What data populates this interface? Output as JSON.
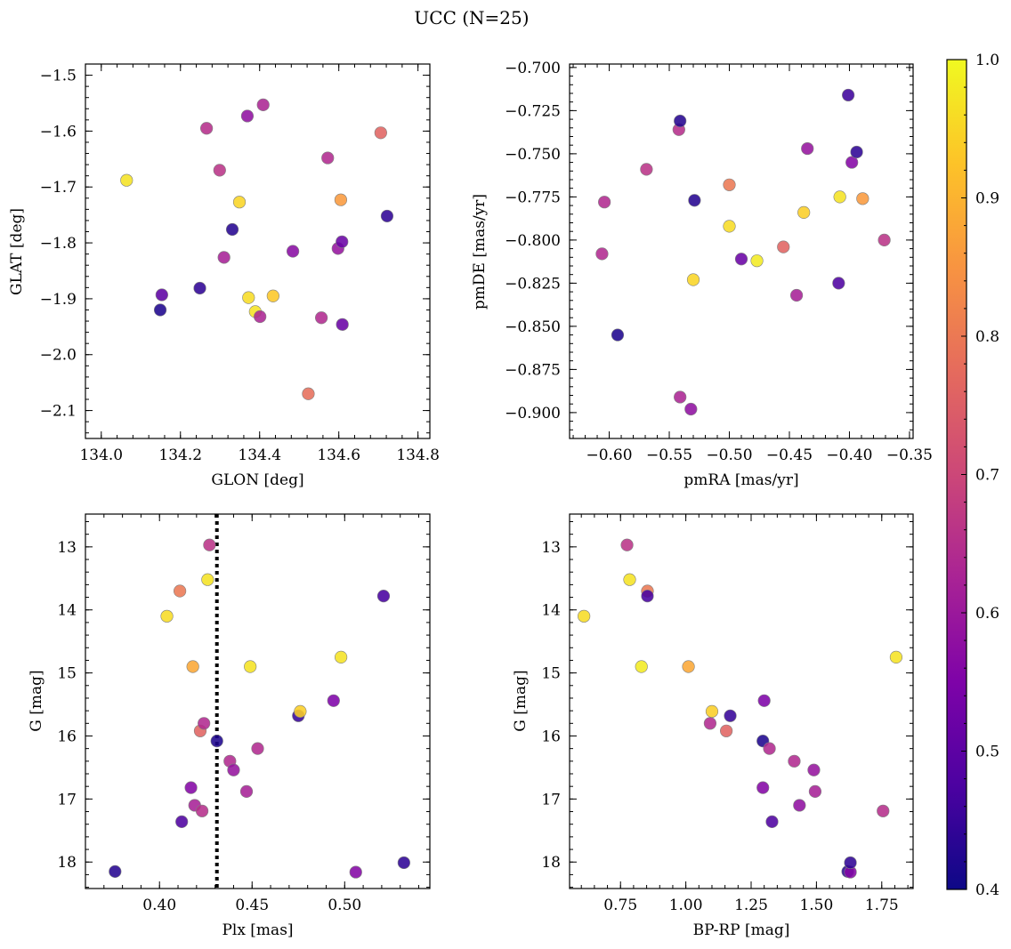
{
  "figure": {
    "title": "UCC (N=25)"
  },
  "colorbar": {
    "colormap": "plasma",
    "range": [
      0.4,
      1.0
    ],
    "ticks": [
      0.4,
      0.5,
      0.6,
      0.7,
      0.8,
      0.9,
      1.0
    ],
    "tick_labels": [
      "0.4",
      "0.5",
      "0.6",
      "0.7",
      "0.8",
      "0.9",
      "1.0"
    ]
  },
  "cluster_marker": {
    "plx": 0.431
  },
  "chart_data": [
    {
      "type": "scatter",
      "panel": "top-left",
      "xlabel": "GLON [deg]",
      "ylabel": "GLAT [deg]",
      "xlim": [
        133.96,
        134.83
      ],
      "ylim": [
        -2.15,
        -1.48
      ],
      "xticks": [
        134.0,
        134.2,
        134.4,
        134.6,
        134.8
      ],
      "xtick_labels": [
        "134.0",
        "134.2",
        "134.4",
        "134.6",
        "134.8"
      ],
      "yticks": [
        -1.5,
        -1.6,
        -1.7,
        -1.8,
        -1.9,
        -2.0,
        -2.1
      ],
      "ytick_labels": [
        "−1.5",
        "−1.6",
        "−1.7",
        "−1.8",
        "−1.9",
        "−2.0",
        "−2.1"
      ],
      "points": [
        {
          "x": 134.064,
          "y": -1.688,
          "c": 0.97
        },
        {
          "x": 134.149,
          "y": -1.92,
          "c": 0.42
        },
        {
          "x": 134.153,
          "y": -1.893,
          "c": 0.5
        },
        {
          "x": 134.249,
          "y": -1.881,
          "c": 0.44
        },
        {
          "x": 134.266,
          "y": -1.595,
          "c": 0.65
        },
        {
          "x": 134.299,
          "y": -1.67,
          "c": 0.66
        },
        {
          "x": 134.31,
          "y": -1.826,
          "c": 0.62
        },
        {
          "x": 134.331,
          "y": -1.776,
          "c": 0.43
        },
        {
          "x": 134.349,
          "y": -1.727,
          "c": 0.95
        },
        {
          "x": 134.369,
          "y": -1.573,
          "c": 0.58
        },
        {
          "x": 134.372,
          "y": -1.898,
          "c": 0.96
        },
        {
          "x": 134.389,
          "y": -1.923,
          "c": 0.97
        },
        {
          "x": 134.401,
          "y": -1.932,
          "c": 0.63
        },
        {
          "x": 134.409,
          "y": -1.553,
          "c": 0.63
        },
        {
          "x": 134.434,
          "y": -1.895,
          "c": 0.93
        },
        {
          "x": 134.484,
          "y": -1.815,
          "c": 0.57
        },
        {
          "x": 134.523,
          "y": -2.07,
          "c": 0.78
        },
        {
          "x": 134.556,
          "y": -1.934,
          "c": 0.64
        },
        {
          "x": 134.572,
          "y": -1.648,
          "c": 0.64
        },
        {
          "x": 134.598,
          "y": -1.81,
          "c": 0.59
        },
        {
          "x": 134.605,
          "y": -1.723,
          "c": 0.86
        },
        {
          "x": 134.608,
          "y": -1.798,
          "c": 0.52
        },
        {
          "x": 134.609,
          "y": -1.946,
          "c": 0.52
        },
        {
          "x": 134.706,
          "y": -1.603,
          "c": 0.76
        },
        {
          "x": 134.722,
          "y": -1.752,
          "c": 0.44
        }
      ]
    },
    {
      "type": "scatter",
      "panel": "top-right",
      "xlabel": "pmRA [mas/yr]",
      "ylabel": "pmDE [mas/yr]",
      "xlim": [
        -0.633,
        -0.347
      ],
      "ylim": [
        -0.915,
        -0.698
      ],
      "xticks": [
        -0.6,
        -0.55,
        -0.5,
        -0.45,
        -0.4,
        -0.35
      ],
      "xtick_labels": [
        "−0.60",
        "−0.55",
        "−0.50",
        "−0.45",
        "−0.40",
        "−0.35"
      ],
      "yticks": [
        -0.7,
        -0.725,
        -0.75,
        -0.775,
        -0.8,
        -0.825,
        -0.85,
        -0.875,
        -0.9
      ],
      "ytick_labels": [
        "−0.700",
        "−0.725",
        "−0.750",
        "−0.775",
        "−0.800",
        "−0.825",
        "−0.850",
        "−0.875",
        "−0.900"
      ],
      "points": [
        {
          "x": -0.606,
          "y": -0.808,
          "c": 0.64
        },
        {
          "x": -0.604,
          "y": -0.778,
          "c": 0.64
        },
        {
          "x": -0.593,
          "y": -0.855,
          "c": 0.42
        },
        {
          "x": -0.569,
          "y": -0.759,
          "c": 0.66
        },
        {
          "x": -0.542,
          "y": -0.736,
          "c": 0.65
        },
        {
          "x": -0.541,
          "y": -0.731,
          "c": 0.43
        },
        {
          "x": -0.541,
          "y": -0.891,
          "c": 0.63
        },
        {
          "x": -0.532,
          "y": -0.898,
          "c": 0.58
        },
        {
          "x": -0.53,
          "y": -0.823,
          "c": 0.95
        },
        {
          "x": -0.529,
          "y": -0.777,
          "c": 0.43
        },
        {
          "x": -0.5,
          "y": -0.792,
          "c": 0.96
        },
        {
          "x": -0.5,
          "y": -0.768,
          "c": 0.8
        },
        {
          "x": -0.49,
          "y": -0.811,
          "c": 0.52
        },
        {
          "x": -0.477,
          "y": -0.812,
          "c": 0.98
        },
        {
          "x": -0.455,
          "y": -0.804,
          "c": 0.76
        },
        {
          "x": -0.444,
          "y": -0.832,
          "c": 0.62
        },
        {
          "x": -0.438,
          "y": -0.784,
          "c": 0.94
        },
        {
          "x": -0.435,
          "y": -0.747,
          "c": 0.59
        },
        {
          "x": -0.409,
          "y": -0.825,
          "c": 0.48
        },
        {
          "x": -0.408,
          "y": -0.775,
          "c": 0.97
        },
        {
          "x": -0.401,
          "y": -0.716,
          "c": 0.46
        },
        {
          "x": -0.398,
          "y": -0.755,
          "c": 0.56
        },
        {
          "x": -0.394,
          "y": -0.749,
          "c": 0.44
        },
        {
          "x": -0.389,
          "y": -0.776,
          "c": 0.86
        },
        {
          "x": -0.371,
          "y": -0.8,
          "c": 0.66
        }
      ]
    },
    {
      "type": "scatter",
      "panel": "bottom-left",
      "xlabel": "Plx [mas]",
      "ylabel": "G [mag]",
      "xlim": [
        0.36,
        0.546
      ],
      "ylim": [
        18.42,
        12.48
      ],
      "y_inverted": true,
      "xticks": [
        0.4,
        0.45,
        0.5
      ],
      "xtick_labels": [
        "0.40",
        "0.45",
        "0.50"
      ],
      "yticks": [
        13,
        14,
        15,
        16,
        17,
        18
      ],
      "ytick_labels": [
        "13",
        "14",
        "15",
        "16",
        "17",
        "18"
      ],
      "points": [
        {
          "x": 0.376,
          "y": 18.15,
          "c": 0.43
        },
        {
          "x": 0.404,
          "y": 14.1,
          "c": 0.96
        },
        {
          "x": 0.411,
          "y": 13.7,
          "c": 0.8
        },
        {
          "x": 0.412,
          "y": 17.36,
          "c": 0.48
        },
        {
          "x": 0.417,
          "y": 16.82,
          "c": 0.56
        },
        {
          "x": 0.418,
          "y": 14.9,
          "c": 0.88
        },
        {
          "x": 0.419,
          "y": 17.1,
          "c": 0.62
        },
        {
          "x": 0.422,
          "y": 15.92,
          "c": 0.76
        },
        {
          "x": 0.423,
          "y": 17.19,
          "c": 0.65
        },
        {
          "x": 0.424,
          "y": 15.8,
          "c": 0.64
        },
        {
          "x": 0.426,
          "y": 13.52,
          "c": 0.97
        },
        {
          "x": 0.427,
          "y": 12.97,
          "c": 0.66
        },
        {
          "x": 0.431,
          "y": 16.08,
          "c": 0.42
        },
        {
          "x": 0.438,
          "y": 16.4,
          "c": 0.64
        },
        {
          "x": 0.44,
          "y": 16.54,
          "c": 0.59
        },
        {
          "x": 0.447,
          "y": 16.88,
          "c": 0.62
        },
        {
          "x": 0.449,
          "y": 14.9,
          "c": 0.97
        },
        {
          "x": 0.453,
          "y": 16.2,
          "c": 0.64
        },
        {
          "x": 0.475,
          "y": 15.68,
          "c": 0.45
        },
        {
          "x": 0.476,
          "y": 15.61,
          "c": 0.94
        },
        {
          "x": 0.494,
          "y": 15.44,
          "c": 0.55
        },
        {
          "x": 0.498,
          "y": 14.75,
          "c": 0.97
        },
        {
          "x": 0.506,
          "y": 18.16,
          "c": 0.56
        },
        {
          "x": 0.521,
          "y": 13.78,
          "c": 0.47
        },
        {
          "x": 0.532,
          "y": 18.01,
          "c": 0.44
        }
      ]
    },
    {
      "type": "scatter",
      "panel": "bottom-right",
      "xlabel": "BP-RP [mag]",
      "ylabel": "G [mag]",
      "xlim": [
        0.555,
        1.87
      ],
      "ylim": [
        18.42,
        12.48
      ],
      "y_inverted": true,
      "xticks": [
        0.75,
        1.0,
        1.25,
        1.5,
        1.75
      ],
      "xtick_labels": [
        "0.75",
        "1.00",
        "1.25",
        "1.50",
        "1.75"
      ],
      "yticks": [
        13,
        14,
        15,
        16,
        17,
        18
      ],
      "ytick_labels": [
        "13",
        "14",
        "15",
        "16",
        "17",
        "18"
      ],
      "points": [
        {
          "x": 0.61,
          "y": 14.1,
          "c": 0.96
        },
        {
          "x": 0.775,
          "y": 12.97,
          "c": 0.66
        },
        {
          "x": 0.785,
          "y": 13.52,
          "c": 0.97
        },
        {
          "x": 0.83,
          "y": 14.9,
          "c": 0.98
        },
        {
          "x": 0.853,
          "y": 13.7,
          "c": 0.8
        },
        {
          "x": 0.853,
          "y": 13.78,
          "c": 0.47
        },
        {
          "x": 1.01,
          "y": 14.9,
          "c": 0.88
        },
        {
          "x": 1.093,
          "y": 15.8,
          "c": 0.64
        },
        {
          "x": 1.1,
          "y": 15.61,
          "c": 0.94
        },
        {
          "x": 1.155,
          "y": 15.92,
          "c": 0.76
        },
        {
          "x": 1.17,
          "y": 15.68,
          "c": 0.45
        },
        {
          "x": 1.295,
          "y": 16.08,
          "c": 0.42
        },
        {
          "x": 1.295,
          "y": 16.82,
          "c": 0.56
        },
        {
          "x": 1.3,
          "y": 15.44,
          "c": 0.55
        },
        {
          "x": 1.32,
          "y": 16.2,
          "c": 0.64
        },
        {
          "x": 1.33,
          "y": 17.36,
          "c": 0.48
        },
        {
          "x": 1.415,
          "y": 16.4,
          "c": 0.64
        },
        {
          "x": 1.435,
          "y": 17.1,
          "c": 0.58
        },
        {
          "x": 1.49,
          "y": 16.54,
          "c": 0.59
        },
        {
          "x": 1.495,
          "y": 16.88,
          "c": 0.62
        },
        {
          "x": 1.62,
          "y": 18.15,
          "c": 0.43
        },
        {
          "x": 1.63,
          "y": 18.16,
          "c": 0.56
        },
        {
          "x": 1.63,
          "y": 18.01,
          "c": 0.44
        },
        {
          "x": 1.755,
          "y": 17.19,
          "c": 0.65
        },
        {
          "x": 1.805,
          "y": 14.75,
          "c": 0.97
        }
      ]
    }
  ]
}
